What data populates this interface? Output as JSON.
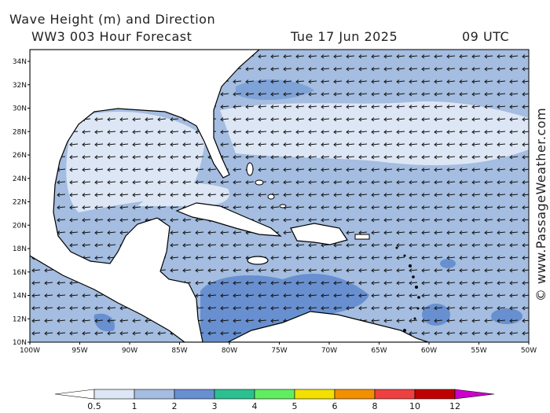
{
  "header": {
    "title": "Wave Height (m) and Direction",
    "subtitle": "WW3 003 Hour Forecast",
    "date": "Tue 17 Jun 2025",
    "time": "09 UTC"
  },
  "map": {
    "lat_labels": [
      "34N",
      "32N",
      "30N",
      "28N",
      "26N",
      "24N",
      "22N",
      "20N",
      "18N",
      "16N",
      "14N",
      "12N",
      "10N"
    ],
    "lon_labels": [
      "100W",
      "95W",
      "90W",
      "85W",
      "80W",
      "75W",
      "70W",
      "65W",
      "60W",
      "55W",
      "50W"
    ]
  },
  "legend": {
    "labels": [
      "0.5",
      "1",
      "2",
      "3",
      "4",
      "5",
      "6",
      "8",
      "10",
      "12"
    ],
    "colors": [
      "#dde6f5",
      "#a4bde0",
      "#6890d0",
      "#2cc090",
      "#60ee60",
      "#f2e000",
      "#f29000",
      "#ee4040",
      "#c00000"
    ],
    "over_color": "#cc00cc"
  },
  "credit": "© www.PassageWeather.com"
}
